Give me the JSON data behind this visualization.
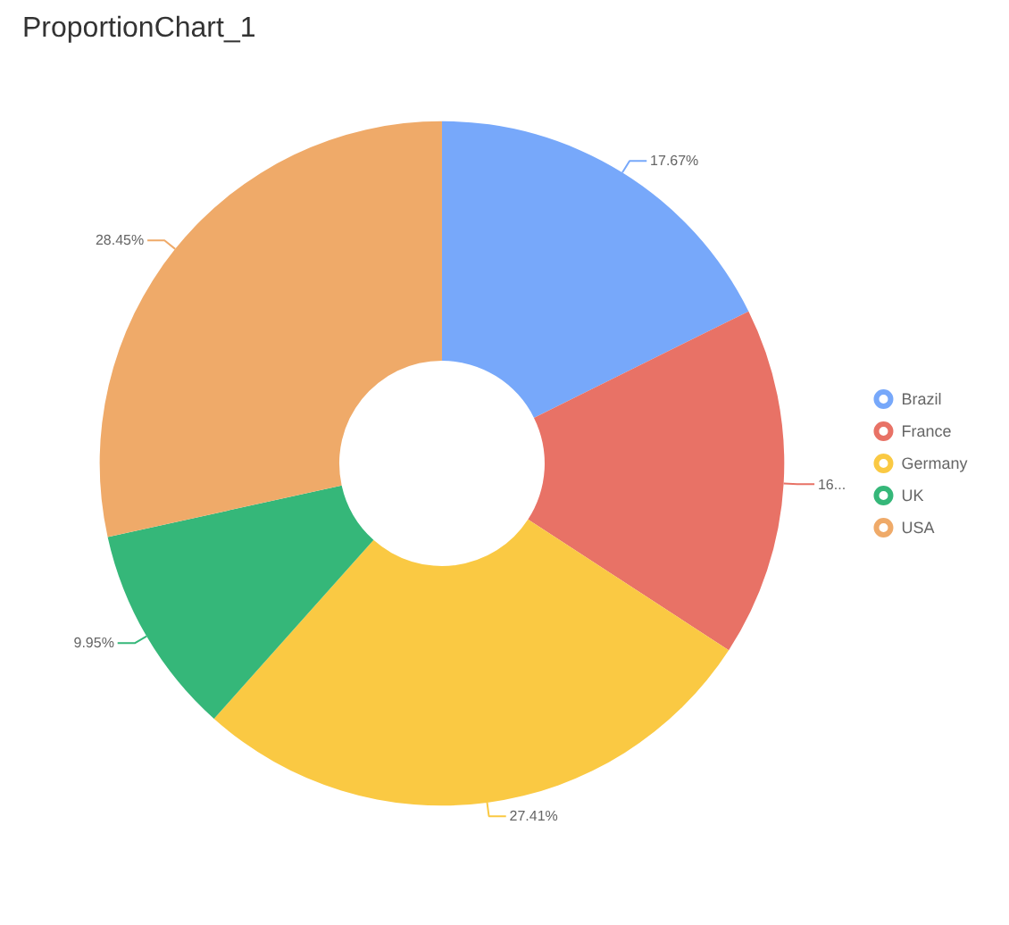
{
  "chart_data": {
    "type": "donut",
    "title": "ProportionChart_1",
    "categories": [
      "Brazil",
      "France",
      "Germany",
      "UK",
      "USA"
    ],
    "values": [
      17.67,
      16.52,
      27.41,
      9.95,
      28.45
    ],
    "colors": [
      "#77a8fa",
      "#e87266",
      "#fac943",
      "#35b779",
      "#efaa69"
    ],
    "value_labels": [
      "17.67%",
      "16...",
      "27.41%",
      "9.95%",
      "28.45%"
    ],
    "legend": "right"
  }
}
